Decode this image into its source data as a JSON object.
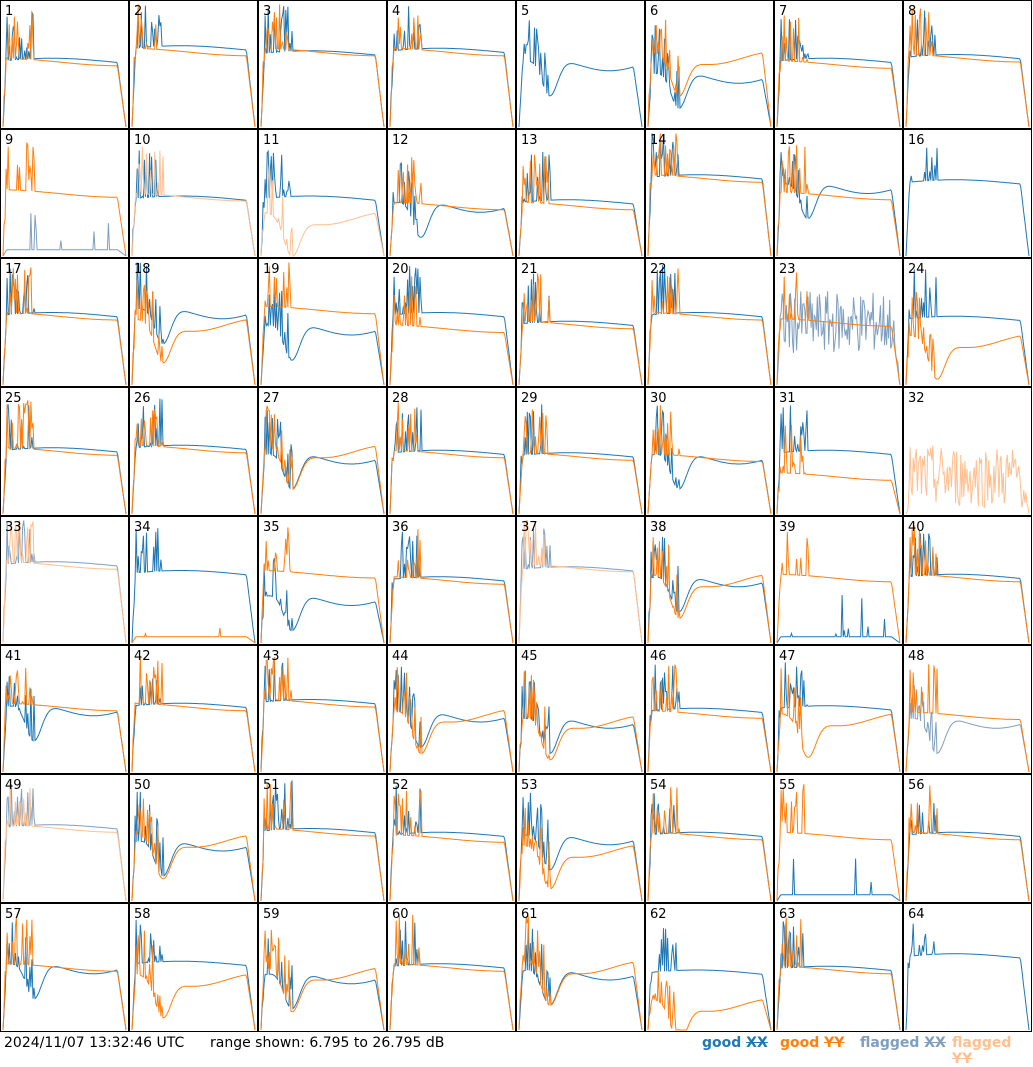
{
  "footer": {
    "timestamp": "2024/11/07 13:32:46 UTC",
    "range_text": "range shown: 6.795 to 26.795 dB"
  },
  "legend": [
    {
      "id": "gx",
      "word": "good",
      "pol": "XX",
      "color": "#1f77b4"
    },
    {
      "id": "gy",
      "word": "good",
      "pol": "YY",
      "color": "#ff7f0e"
    },
    {
      "id": "fx",
      "word": "flagged",
      "pol": "XX",
      "color": "#7f9fbf"
    },
    {
      "id": "fy",
      "word": "flagged",
      "pol": "YY",
      "color": "#ffbf8f"
    }
  ],
  "chart_data": {
    "type": "line",
    "title": "",
    "grid": "8x8 small multiples",
    "ylim": [
      6.795,
      26.795
    ],
    "yunit": "dB",
    "colors": {
      "good_xx": "#1f77b4",
      "good_yy": "#ff7f0e",
      "flagged_xx": "#7f9fbf",
      "flagged_yy": "#ffbf8f"
    },
    "panels": [
      {
        "label": "1",
        "xx": {
          "level": 0.52,
          "shape": "normal"
        },
        "yy": {
          "level": 0.52,
          "shape": "normal"
        }
      },
      {
        "label": "2",
        "xx": {
          "level": 0.62,
          "shape": "normal"
        },
        "yy": {
          "level": 0.6,
          "shape": "normal"
        }
      },
      {
        "label": "3",
        "xx": {
          "level": 0.58,
          "shape": "normal"
        },
        "yy": {
          "level": 0.6,
          "shape": "normal"
        }
      },
      {
        "label": "4",
        "xx": {
          "level": 0.6,
          "shape": "normal"
        },
        "yy": {
          "level": 0.6,
          "shape": "normal"
        }
      },
      {
        "label": "5",
        "xx": {
          "level": 0.5,
          "shape": "dip"
        },
        "yy": null
      },
      {
        "label": "6",
        "xx": {
          "level": 0.4,
          "shape": "dip"
        },
        "yy": {
          "level": 0.55,
          "shape": "dip"
        }
      },
      {
        "label": "7",
        "xx": {
          "level": 0.52,
          "shape": "normal"
        },
        "yy": {
          "level": 0.5,
          "shape": "normal"
        }
      },
      {
        "label": "8",
        "xx": {
          "level": 0.55,
          "shape": "normal"
        },
        "yy": {
          "level": 0.55,
          "shape": "normal"
        }
      },
      {
        "label": "9",
        "xx": {
          "level": 0.05,
          "shape": "flat-low",
          "flagged": true
        },
        "yy": {
          "level": 0.5,
          "shape": "normal"
        }
      },
      {
        "label": "10",
        "xx": {
          "level": 0.45,
          "shape": "normal"
        },
        "yy": {
          "level": 0.47,
          "shape": "normal",
          "flagged": true
        }
      },
      {
        "label": "11",
        "xx": {
          "level": 0.45,
          "shape": "normal"
        },
        "yy": {
          "level": 0.3,
          "shape": "dip",
          "flagged": true
        }
      },
      {
        "label": "12",
        "xx": {
          "level": 0.4,
          "shape": "dip"
        },
        "yy": {
          "level": 0.4,
          "shape": "normal"
        }
      },
      {
        "label": "13",
        "xx": {
          "level": 0.42,
          "shape": "normal"
        },
        "yy": {
          "level": 0.4,
          "shape": "normal"
        }
      },
      {
        "label": "14",
        "xx": {
          "level": 0.62,
          "shape": "normal"
        },
        "yy": {
          "level": 0.62,
          "shape": "normal"
        }
      },
      {
        "label": "15",
        "xx": {
          "level": 0.55,
          "shape": "dip"
        },
        "yy": {
          "level": 0.48,
          "shape": "normal"
        }
      },
      {
        "label": "16",
        "xx": {
          "level": 0.58,
          "shape": "normal"
        },
        "yy": null
      },
      {
        "label": "17",
        "xx": {
          "level": 0.55,
          "shape": "normal"
        },
        "yy": {
          "level": 0.55,
          "shape": "normal"
        }
      },
      {
        "label": "18",
        "xx": {
          "level": 0.58,
          "shape": "dip"
        },
        "yy": {
          "level": 0.48,
          "shape": "dip"
        }
      },
      {
        "label": "19",
        "xx": {
          "level": 0.45,
          "shape": "dip"
        },
        "yy": {
          "level": 0.6,
          "shape": "normal"
        }
      },
      {
        "label": "20",
        "xx": {
          "level": 0.55,
          "shape": "normal"
        },
        "yy": {
          "level": 0.45,
          "shape": "normal"
        }
      },
      {
        "label": "21",
        "xx": {
          "level": 0.48,
          "shape": "normal"
        },
        "yy": {
          "level": 0.48,
          "shape": "normal"
        }
      },
      {
        "label": "22",
        "xx": {
          "level": 0.55,
          "shape": "normal"
        },
        "yy": {
          "level": 0.55,
          "shape": "normal"
        }
      },
      {
        "label": "23",
        "xx": {
          "level": 0.5,
          "shape": "noisy",
          "flagged": true
        },
        "yy": {
          "level": 0.5,
          "shape": "normal"
        }
      },
      {
        "label": "24",
        "xx": {
          "level": 0.52,
          "shape": "normal"
        },
        "yy": {
          "level": 0.35,
          "shape": "dip"
        }
      },
      {
        "label": "25",
        "xx": {
          "level": 0.5,
          "shape": "normal"
        },
        "yy": {
          "level": 0.5,
          "shape": "normal"
        }
      },
      {
        "label": "26",
        "xx": {
          "level": 0.52,
          "shape": "normal"
        },
        "yy": {
          "level": 0.52,
          "shape": "normal"
        }
      },
      {
        "label": "27",
        "xx": {
          "level": 0.45,
          "shape": "dip"
        },
        "yy": {
          "level": 0.5,
          "shape": "dip"
        }
      },
      {
        "label": "28",
        "xx": {
          "level": 0.48,
          "shape": "normal"
        },
        "yy": {
          "level": 0.48,
          "shape": "normal"
        }
      },
      {
        "label": "29",
        "xx": {
          "level": 0.46,
          "shape": "normal"
        },
        "yy": {
          "level": 0.46,
          "shape": "normal"
        }
      },
      {
        "label": "30",
        "xx": {
          "level": 0.45,
          "shape": "dip"
        },
        "yy": {
          "level": 0.45,
          "shape": "normal"
        }
      },
      {
        "label": "31",
        "xx": {
          "level": 0.48,
          "shape": "normal"
        },
        "yy": {
          "level": 0.3,
          "shape": "normal"
        }
      },
      {
        "label": "32",
        "xx": null,
        "yy": {
          "level": 0.3,
          "shape": "noisy",
          "flagged": true
        }
      },
      {
        "label": "33",
        "xx": {
          "level": 0.62,
          "shape": "normal",
          "flagged": true
        },
        "yy": {
          "level": 0.62,
          "shape": "normal",
          "flagged": true
        }
      },
      {
        "label": "34",
        "xx": {
          "level": 0.55,
          "shape": "normal"
        },
        "yy": {
          "level": 0.05,
          "shape": "flat-low"
        }
      },
      {
        "label": "35",
        "xx": {
          "level": 0.35,
          "shape": "dip"
        },
        "yy": {
          "level": 0.55,
          "shape": "normal"
        }
      },
      {
        "label": "36",
        "xx": {
          "level": 0.5,
          "shape": "normal"
        },
        "yy": {
          "level": 0.5,
          "shape": "normal"
        }
      },
      {
        "label": "37",
        "xx": {
          "level": 0.58,
          "shape": "normal",
          "flagged": true
        },
        "yy": {
          "level": 0.6,
          "shape": "normal",
          "flagged": true
        }
      },
      {
        "label": "38",
        "xx": {
          "level": 0.5,
          "shape": "dip"
        },
        "yy": {
          "level": 0.5,
          "shape": "dip"
        }
      },
      {
        "label": "39",
        "xx": {
          "level": 0.05,
          "shape": "flat-low"
        },
        "yy": {
          "level": 0.52,
          "shape": "normal"
        }
      },
      {
        "label": "40",
        "xx": {
          "level": 0.52,
          "shape": "normal"
        },
        "yy": {
          "level": 0.52,
          "shape": "normal"
        }
      },
      {
        "label": "41",
        "xx": {
          "level": 0.5,
          "shape": "dip"
        },
        "yy": {
          "level": 0.52,
          "shape": "normal"
        }
      },
      {
        "label": "42",
        "xx": {
          "level": 0.52,
          "shape": "normal"
        },
        "yy": {
          "level": 0.52,
          "shape": "normal"
        }
      },
      {
        "label": "43",
        "xx": {
          "level": 0.55,
          "shape": "normal"
        },
        "yy": {
          "level": 0.55,
          "shape": "normal"
        }
      },
      {
        "label": "44",
        "xx": {
          "level": 0.45,
          "shape": "dip"
        },
        "yy": {
          "level": 0.45,
          "shape": "dip"
        }
      },
      {
        "label": "45",
        "xx": {
          "level": 0.4,
          "shape": "dip"
        },
        "yy": {
          "level": 0.4,
          "shape": "dip"
        }
      },
      {
        "label": "46",
        "xx": {
          "level": 0.48,
          "shape": "normal"
        },
        "yy": {
          "level": 0.46,
          "shape": "normal"
        }
      },
      {
        "label": "47",
        "xx": {
          "level": 0.5,
          "shape": "normal"
        },
        "yy": {
          "level": 0.42,
          "shape": "dip"
        }
      },
      {
        "label": "48",
        "xx": {
          "level": 0.4,
          "shape": "dip",
          "flagged": true
        },
        "yy": {
          "level": 0.45,
          "shape": "normal"
        }
      },
      {
        "label": "49",
        "xx": {
          "level": 0.58,
          "shape": "normal",
          "flagged": true
        },
        "yy": {
          "level": 0.58,
          "shape": "normal",
          "flagged": true
        }
      },
      {
        "label": "50",
        "xx": {
          "level": 0.45,
          "shape": "dip"
        },
        "yy": {
          "level": 0.48,
          "shape": "dip"
        }
      },
      {
        "label": "51",
        "xx": {
          "level": 0.55,
          "shape": "normal"
        },
        "yy": {
          "level": 0.55,
          "shape": "normal"
        }
      },
      {
        "label": "52",
        "xx": {
          "level": 0.52,
          "shape": "normal"
        },
        "yy": {
          "level": 0.5,
          "shape": "normal"
        }
      },
      {
        "label": "53",
        "xx": {
          "level": 0.5,
          "shape": "dip"
        },
        "yy": {
          "level": 0.4,
          "shape": "dip"
        }
      },
      {
        "label": "54",
        "xx": {
          "level": 0.52,
          "shape": "normal"
        },
        "yy": {
          "level": 0.52,
          "shape": "normal"
        }
      },
      {
        "label": "55",
        "xx": {
          "level": 0.05,
          "shape": "flat-low"
        },
        "yy": {
          "level": 0.52,
          "shape": "normal"
        }
      },
      {
        "label": "56",
        "xx": {
          "level": 0.52,
          "shape": "normal"
        },
        "yy": {
          "level": 0.52,
          "shape": "normal"
        }
      },
      {
        "label": "57",
        "xx": {
          "level": 0.5,
          "shape": "dip"
        },
        "yy": {
          "level": 0.5,
          "shape": "normal"
        }
      },
      {
        "label": "58",
        "xx": {
          "level": 0.52,
          "shape": "normal"
        },
        "yy": {
          "level": 0.4,
          "shape": "dip"
        }
      },
      {
        "label": "59",
        "xx": {
          "level": 0.42,
          "shape": "dip"
        },
        "yy": {
          "level": 0.45,
          "shape": "dip"
        }
      },
      {
        "label": "60",
        "xx": {
          "level": 0.5,
          "shape": "normal"
        },
        "yy": {
          "level": 0.5,
          "shape": "normal"
        }
      },
      {
        "label": "61",
        "xx": {
          "level": 0.45,
          "shape": "dip"
        },
        "yy": {
          "level": 0.5,
          "shape": "dip"
        }
      },
      {
        "label": "62",
        "xx": {
          "level": 0.45,
          "shape": "normal"
        },
        "yy": {
          "level": 0.2,
          "shape": "dip"
        }
      },
      {
        "label": "63",
        "xx": {
          "level": 0.48,
          "shape": "normal"
        },
        "yy": {
          "level": 0.48,
          "shape": "normal"
        }
      },
      {
        "label": "64",
        "xx": {
          "level": 0.58,
          "shape": "normal"
        },
        "yy": null
      }
    ]
  }
}
